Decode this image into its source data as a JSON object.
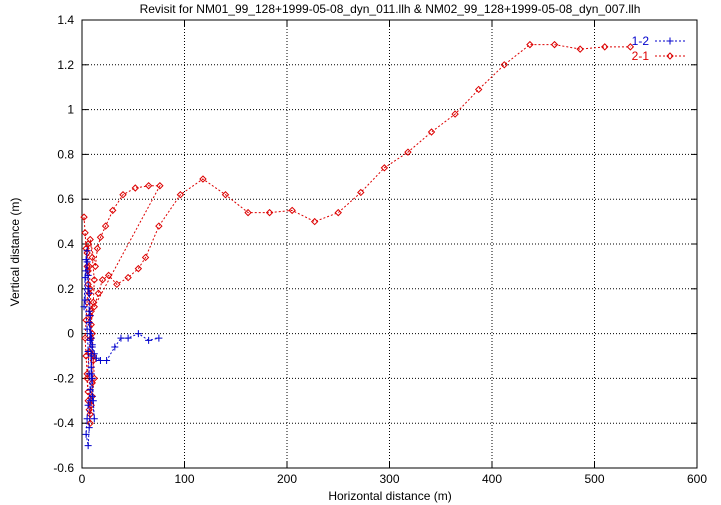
{
  "chart_data": {
    "type": "line",
    "title": "Revisit for NM01_99_128+1999-05-08_dyn_011.llh & NM02_99_128+1999-05-08_dyn_007.llh",
    "xlabel": "Horizontal distance (m)",
    "ylabel": "Vertical distance (m)",
    "xlim": [
      0,
      600
    ],
    "ylim": [
      -0.6,
      1.4
    ],
    "x_ticks": [
      0,
      100,
      200,
      300,
      400,
      500,
      600
    ],
    "y_ticks": [
      -0.6,
      -0.4,
      -0.2,
      0,
      0.2,
      0.4,
      0.6,
      0.8,
      1,
      1.2,
      1.4
    ],
    "grid": true,
    "legend_position": "top-right",
    "series": [
      {
        "name": "1-2",
        "color": "#0000cc",
        "marker": "plus",
        "line": "dashed",
        "x": [
          2,
          3,
          4,
          5,
          4,
          3,
          5,
          6,
          7,
          8,
          6,
          5,
          4,
          6,
          7,
          8,
          9,
          10,
          8,
          7,
          6,
          5,
          6,
          7,
          8,
          9,
          10,
          11,
          12,
          10,
          9,
          8,
          7,
          9,
          10,
          12,
          14,
          18,
          24,
          32,
          38,
          45,
          55,
          65,
          75
        ],
        "y": [
          0.12,
          0.25,
          0.33,
          0.37,
          0.28,
          0.15,
          0.02,
          -0.08,
          -0.18,
          -0.25,
          -0.32,
          -0.38,
          -0.45,
          -0.5,
          -0.42,
          -0.3,
          -0.18,
          -0.05,
          0.08,
          0.18,
          0.26,
          0.32,
          0.2,
          0.1,
          0.0,
          -0.1,
          -0.2,
          -0.3,
          -0.38,
          -0.28,
          -0.15,
          -0.03,
          0.05,
          -0.02,
          -0.06,
          -0.09,
          -0.11,
          -0.12,
          -0.12,
          -0.06,
          -0.02,
          -0.02,
          0.0,
          -0.03,
          -0.02
        ]
      },
      {
        "name": "2-1",
        "color": "#dd0000",
        "marker": "diamond",
        "line": "dashed",
        "x": [
          2,
          3,
          4,
          5,
          6,
          5,
          4,
          3,
          4,
          5,
          6,
          7,
          8,
          9,
          10,
          11,
          9,
          8,
          7,
          6,
          5,
          6,
          7,
          8,
          9,
          10,
          11,
          12,
          10,
          8,
          6,
          5,
          7,
          9,
          11,
          12,
          10,
          8,
          13,
          15,
          18,
          23,
          30,
          40,
          52,
          65,
          76,
          12,
          16,
          20,
          26,
          34,
          45,
          55,
          62,
          75,
          96,
          118,
          140,
          162,
          183,
          205,
          227,
          250,
          272,
          295,
          318,
          341,
          364,
          387,
          412,
          437,
          461,
          486,
          510,
          535
        ],
        "y": [
          0.52,
          0.45,
          0.38,
          0.3,
          0.22,
          0.14,
          0.06,
          -0.02,
          -0.1,
          -0.18,
          -0.26,
          -0.34,
          -0.4,
          -0.32,
          -0.22,
          -0.12,
          -0.02,
          0.08,
          0.18,
          0.28,
          0.36,
          0.4,
          0.3,
          0.2,
          0.1,
          0.0,
          -0.1,
          -0.2,
          -0.28,
          -0.36,
          -0.3,
          -0.2,
          -0.08,
          0.04,
          0.14,
          0.24,
          0.34,
          0.42,
          0.3,
          0.38,
          0.43,
          0.48,
          0.55,
          0.62,
          0.65,
          0.66,
          0.66,
          0.12,
          0.18,
          0.24,
          0.26,
          0.22,
          0.25,
          0.29,
          0.34,
          0.48,
          0.62,
          0.69,
          0.62,
          0.54,
          0.54,
          0.55,
          0.5,
          0.54,
          0.63,
          0.74,
          0.81,
          0.9,
          0.98,
          1.09,
          1.2,
          1.29,
          1.29,
          1.27,
          1.28,
          1.28
        ]
      }
    ]
  }
}
